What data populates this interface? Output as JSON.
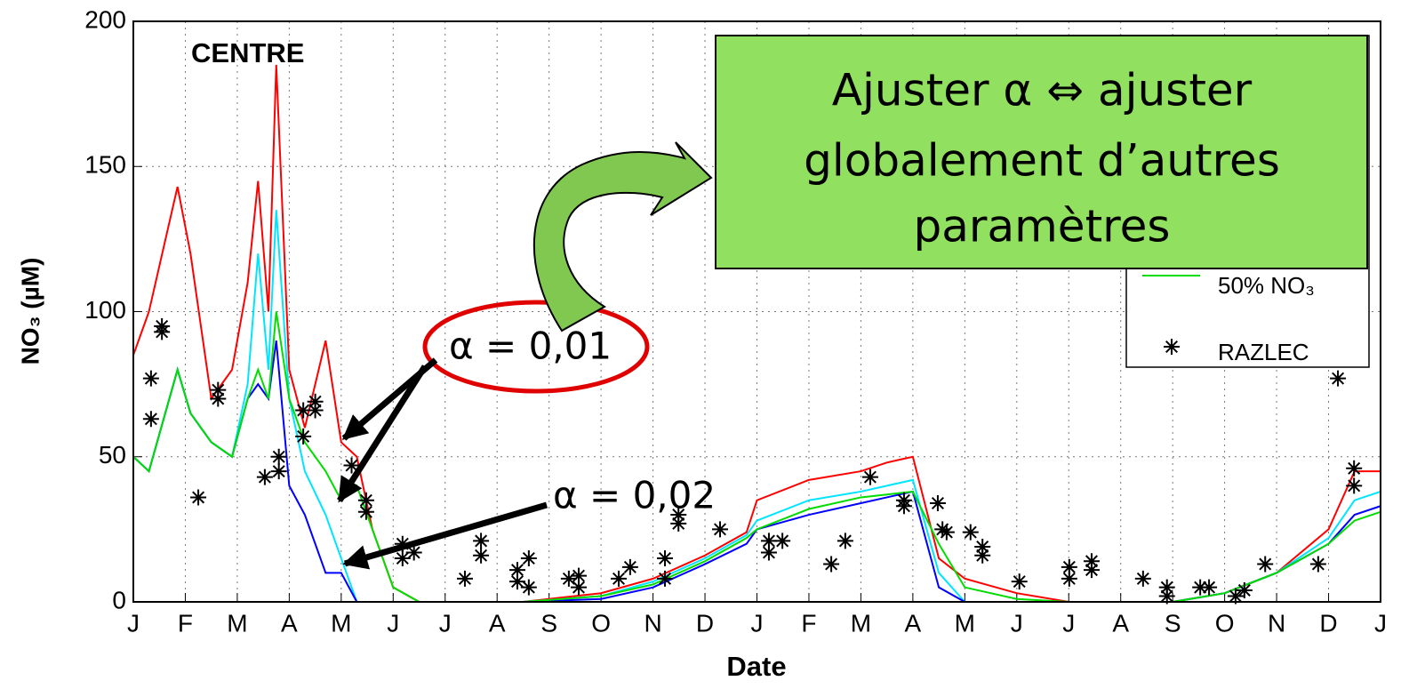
{
  "chart_data": {
    "type": "line",
    "title": "CENTRE",
    "xlabel": "Date",
    "ylabel": "NO₃ (µM)",
    "xlim": [
      0,
      24
    ],
    "ylim": [
      0,
      200
    ],
    "xticks": [
      {
        "value": 0,
        "label": "J"
      },
      {
        "value": 1,
        "label": "F"
      },
      {
        "value": 2,
        "label": "M"
      },
      {
        "value": 3,
        "label": "A"
      },
      {
        "value": 4,
        "label": "M"
      },
      {
        "value": 5,
        "label": "J"
      },
      {
        "value": 6,
        "label": "J"
      },
      {
        "value": 7,
        "label": "A"
      },
      {
        "value": 8,
        "label": "S"
      },
      {
        "value": 9,
        "label": "O"
      },
      {
        "value": 10,
        "label": "N"
      },
      {
        "value": 11,
        "label": "D"
      },
      {
        "value": 12,
        "label": "J"
      },
      {
        "value": 13,
        "label": "F"
      },
      {
        "value": 14,
        "label": "M"
      },
      {
        "value": 15,
        "label": "A"
      },
      {
        "value": 16,
        "label": "M"
      },
      {
        "value": 17,
        "label": "J"
      },
      {
        "value": 18,
        "label": "J"
      },
      {
        "value": 19,
        "label": "A"
      },
      {
        "value": 20,
        "label": "S"
      },
      {
        "value": 21,
        "label": "O"
      },
      {
        "value": 22,
        "label": "N"
      },
      {
        "value": 23,
        "label": "D"
      },
      {
        "value": 24,
        "label": "J"
      }
    ],
    "yticks": [
      0,
      50,
      100,
      150,
      200
    ],
    "grid": true,
    "x": [
      0,
      0.3,
      0.85,
      1.1,
      1.5,
      1.9,
      2.2,
      2.4,
      2.6,
      2.75,
      3.0,
      3.3,
      3.7,
      4.0,
      4.3,
      4.6,
      5.0,
      5.5,
      7.5,
      9,
      10,
      11,
      11.8,
      12,
      13,
      14,
      14.5,
      15,
      15.5,
      16,
      17,
      18,
      20,
      21,
      22,
      23,
      23.5,
      24
    ],
    "series": [
      {
        "color": "#ff0000",
        "values": [
          85,
          100,
          143,
          120,
          70,
          80,
          110,
          145,
          100,
          185,
          80,
          60,
          90,
          55,
          50,
          25,
          5,
          0,
          0,
          3,
          8,
          16,
          24,
          35,
          42,
          45,
          48,
          50,
          15,
          8,
          3,
          0,
          0,
          3,
          10,
          25,
          45,
          45
        ]
      },
      {
        "color": "#00e5ff",
        "values": [
          50,
          45,
          80,
          65,
          55,
          50,
          75,
          120,
          80,
          135,
          70,
          45,
          30,
          15,
          0,
          0,
          0,
          0,
          0,
          2,
          7,
          15,
          23,
          28,
          35,
          38,
          40,
          42,
          10,
          0,
          0,
          0,
          0,
          3,
          10,
          22,
          35,
          38
        ]
      },
      {
        "color": "#0000ff",
        "values": [
          50,
          45,
          80,
          65,
          55,
          50,
          70,
          75,
          70,
          90,
          40,
          30,
          10,
          10,
          0,
          0,
          0,
          0,
          0,
          1,
          5,
          13,
          20,
          25,
          30,
          34,
          36,
          38,
          5,
          0,
          0,
          0,
          0,
          3,
          10,
          20,
          30,
          33
        ]
      },
      {
        "name": "50% NO₃",
        "color": "#00dd00",
        "values": [
          50,
          45,
          80,
          65,
          55,
          50,
          70,
          80,
          70,
          100,
          70,
          55,
          45,
          35,
          40,
          25,
          5,
          0,
          0,
          2,
          6,
          14,
          22,
          25,
          32,
          36,
          37,
          38,
          20,
          5,
          1,
          0,
          0,
          3,
          10,
          20,
          28,
          31
        ]
      },
      {
        "name": "RAZLEC",
        "type": "scatter",
        "color": "#000000",
        "x": [
          0.34,
          0.34,
          0.55,
          0.55,
          1.25,
          1.63,
          1.63,
          2.53,
          2.8,
          2.8,
          3.27,
          3.27,
          3.5,
          3.5,
          4.2,
          4.48,
          4.48,
          5.18,
          5.18,
          5.4,
          6.38,
          6.69,
          6.69,
          7.39,
          7.39,
          7.61,
          7.61,
          8.38,
          8.57,
          8.57,
          9.34,
          9.56,
          10.23,
          10.23,
          10.49,
          10.49,
          11.29,
          12.23,
          12.23,
          12.49,
          13.43,
          13.7,
          14.18,
          14.83,
          14.83,
          15.48,
          15.57,
          15.65,
          16.11,
          16.34,
          16.34,
          17.05,
          18.01,
          18.01,
          18.44,
          18.44,
          19.43,
          19.89,
          19.89,
          20.53,
          20.7,
          21.21,
          21.38,
          21.78,
          22.8,
          23.18,
          23.49,
          23.49
        ],
        "values": [
          63,
          77,
          95,
          93,
          36,
          73,
          70,
          43,
          50,
          45,
          57,
          66,
          69,
          66,
          47,
          35,
          31,
          20,
          15,
          17,
          8,
          21,
          16,
          11,
          7,
          15,
          5,
          8,
          9,
          5,
          8,
          12,
          15,
          8,
          27,
          30,
          25,
          21,
          17,
          21,
          13,
          21,
          43,
          35,
          33,
          34,
          25,
          24,
          24,
          19,
          16,
          7,
          12,
          8,
          14,
          11,
          8,
          5,
          2,
          5,
          5,
          2,
          4,
          13,
          13,
          77,
          46,
          40
        ]
      }
    ],
    "annotations": [
      "α = 0,01",
      "α = 0,02"
    ],
    "callout": [
      "Ajuster α ⇔ ajuster",
      "globalement d’autres",
      "paramètres"
    ]
  }
}
